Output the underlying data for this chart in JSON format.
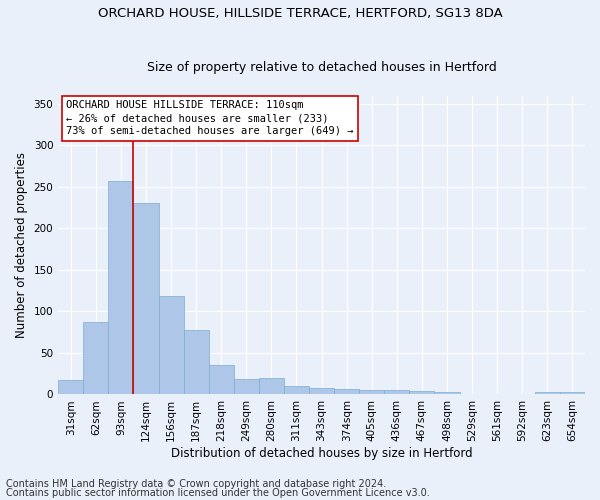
{
  "title": "ORCHARD HOUSE, HILLSIDE TERRACE, HERTFORD, SG13 8DA",
  "subtitle": "Size of property relative to detached houses in Hertford",
  "xlabel": "Distribution of detached houses by size in Hertford",
  "ylabel": "Number of detached properties",
  "bar_labels": [
    "31sqm",
    "62sqm",
    "93sqm",
    "124sqm",
    "156sqm",
    "187sqm",
    "218sqm",
    "249sqm",
    "280sqm",
    "311sqm",
    "343sqm",
    "374sqm",
    "405sqm",
    "436sqm",
    "467sqm",
    "498sqm",
    "529sqm",
    "561sqm",
    "592sqm",
    "623sqm",
    "654sqm"
  ],
  "bar_values": [
    18,
    87,
    257,
    230,
    119,
    78,
    35,
    19,
    20,
    10,
    8,
    7,
    5,
    5,
    4,
    3,
    0,
    0,
    0,
    3,
    3
  ],
  "bar_color": "#aec6e8",
  "bar_edge_color": "#7aaed0",
  "vline_color": "#cc0000",
  "annotation_text": "ORCHARD HOUSE HILLSIDE TERRACE: 110sqm\n← 26% of detached houses are smaller (233)\n73% of semi-detached houses are larger (649) →",
  "annotation_box_color": "#ffffff",
  "annotation_box_edgecolor": "#cc0000",
  "ylim": [
    0,
    360
  ],
  "yticks": [
    0,
    50,
    100,
    150,
    200,
    250,
    300,
    350
  ],
  "footer_line1": "Contains HM Land Registry data © Crown copyright and database right 2024.",
  "footer_line2": "Contains public sector information licensed under the Open Government Licence v3.0.",
  "bg_color": "#eaf0fa",
  "grid_color": "#ffffff",
  "title_fontsize": 9.5,
  "subtitle_fontsize": 9,
  "axis_label_fontsize": 8.5,
  "tick_fontsize": 7.5,
  "footer_fontsize": 7,
  "annotation_fontsize": 7.5
}
